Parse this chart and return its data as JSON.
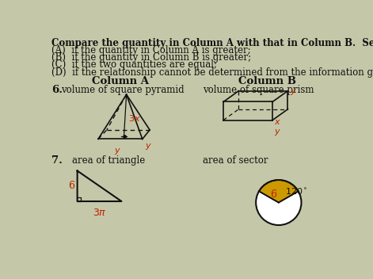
{
  "bg_color": "#c5c8a8",
  "title_lines": [
    "Compare the quantity in Column A with that in Column B.  Select:",
    "(A)  if the quantity in Column A is greater;",
    "(B)  if the quantity in Column B is greater;",
    "(C)  if the two quantities are equal;",
    "(D)  if the relationship cannot be determined from the information given"
  ],
  "col_a_header": "Column A",
  "col_b_header": "Column B",
  "q6_label": "6.",
  "q6_col_a": "volume of square pyramid",
  "q6_col_b": "volume of square prism",
  "q7_label": "7.",
  "q7_col_a": "area of triangle",
  "q7_col_b": "area of sector",
  "red_color": "#bb2200",
  "black_color": "#111111",
  "gold_color": "#cc9900",
  "text_fontsize": 8.5,
  "header_fontsize": 9.5,
  "label_fontsize": 10
}
